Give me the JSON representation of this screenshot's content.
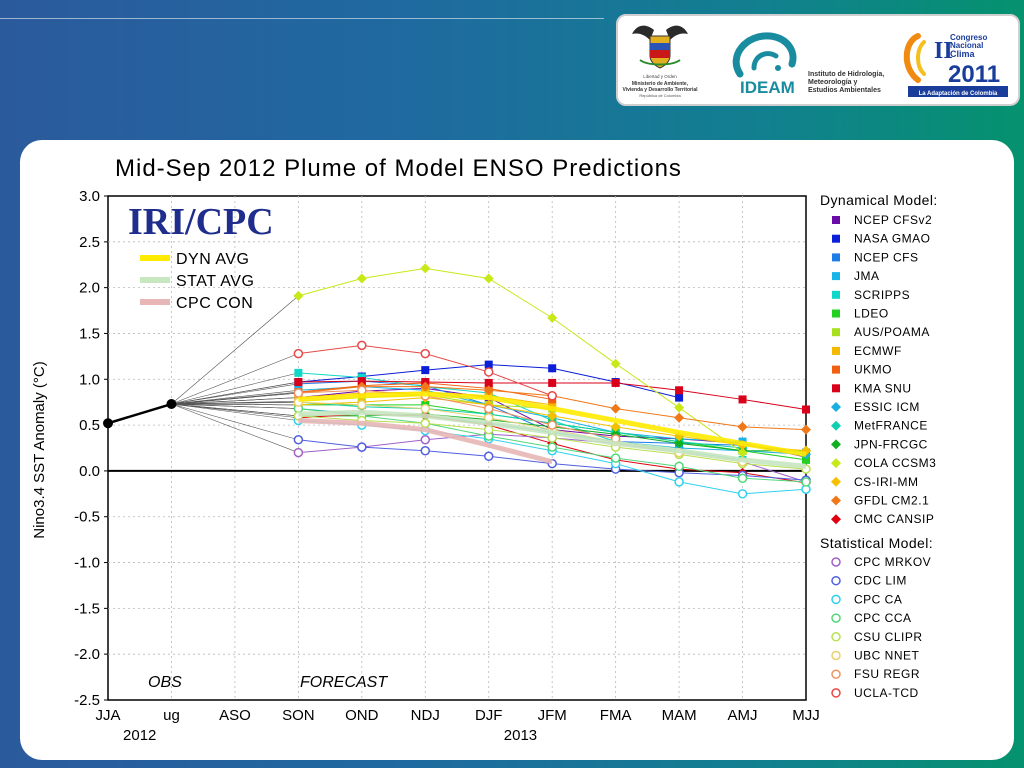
{
  "banner": {
    "logo1": {
      "lines": [
        "Libertad y Orden",
        "Ministerio de Ambiente,",
        "Vivienda y Desarrollo Territorial",
        "República de Colombia"
      ]
    },
    "logo2": {
      "name": "IDEAM",
      "lines": [
        "Instituto de Hidrología,",
        "Meteorología y",
        "Estudios Ambientales"
      ]
    },
    "logo3": {
      "numeral": "II",
      "lines": [
        "Congreso",
        "Nacional",
        "Clima"
      ],
      "year": "2011",
      "tagline": "La Adaptación de Colombia"
    }
  },
  "chart_data": {
    "type": "line",
    "title": "Mid-Sep 2012 Plume of Model ENSO Predictions",
    "ylabel": "Nino3.4 SST Anomaly (°C)",
    "ylim": [
      -2.5,
      3.0
    ],
    "yticks": [
      "3.0",
      "2.5",
      "2.0",
      "1.5",
      "1.0",
      "0.5",
      "0.0",
      "-0.5",
      "-1.0",
      "-1.5",
      "-2.0",
      "-2.5"
    ],
    "categories": [
      "JJA",
      "ug",
      "ASO",
      "SON",
      "OND",
      "NDJ",
      "DJF",
      "JFM",
      "FMA",
      "MAM",
      "AMJ",
      "MJJ"
    ],
    "year_labels": [
      {
        "text": "2012",
        "at": 0.5
      },
      {
        "text": "2013",
        "at": 6.5
      }
    ],
    "obs_label": "OBS",
    "forecast_label": "FORECAST",
    "watermark": "IRI/CPC",
    "grid": true,
    "observed": {
      "x": [
        0,
        1
      ],
      "y": [
        0.52,
        0.73
      ]
    },
    "averages": [
      {
        "name": "DYN AVG",
        "color": "#ffea00",
        "values": [
          null,
          0.73,
          null,
          0.78,
          0.82,
          0.84,
          0.8,
          0.68,
          0.55,
          0.42,
          0.3,
          0.18
        ]
      },
      {
        "name": "STAT AVG",
        "color": "#c8e6c0",
        "values": [
          null,
          0.73,
          null,
          0.62,
          0.64,
          0.6,
          0.52,
          0.42,
          0.3,
          0.22,
          0.12,
          0.05
        ]
      },
      {
        "name": "CPC CON",
        "color": "#e8b6b6",
        "values": [
          null,
          0.73,
          null,
          0.55,
          0.52,
          0.45,
          0.28,
          0.1,
          null,
          null,
          null,
          null
        ]
      }
    ],
    "legend_dynamical_title": "Dynamical Model:",
    "legend_statistical_title": "Statistical Model:",
    "series": [
      {
        "name": "NCEP CFSv2",
        "group": "dyn",
        "marker": "square",
        "color": "#6a0aa8",
        "values": [
          null,
          0.73,
          null,
          0.8,
          0.87,
          0.9,
          0.8,
          0.45,
          0.38,
          0.35,
          0.3,
          0.15
        ]
      },
      {
        "name": "NASA GMAO",
        "group": "dyn",
        "marker": "square",
        "color": "#0b1ed8",
        "values": [
          null,
          0.73,
          null,
          0.97,
          1.03,
          1.1,
          1.16,
          1.12,
          0.97,
          0.8,
          null,
          null
        ]
      },
      {
        "name": "NCEP CFS",
        "group": "dyn",
        "marker": "square",
        "color": "#1e7ce6",
        "values": [
          null,
          0.73,
          null,
          0.95,
          0.98,
          0.93,
          0.72,
          0.42,
          0.32,
          0.3,
          0.28,
          0.2
        ]
      },
      {
        "name": "JMA",
        "group": "dyn",
        "marker": "square",
        "color": "#18b4e8",
        "values": [
          null,
          0.73,
          null,
          0.88,
          0.92,
          0.88,
          0.72,
          0.58,
          0.42,
          0.35,
          0.32,
          null
        ]
      },
      {
        "name": "SCRIPPS",
        "group": "dyn",
        "marker": "square",
        "color": "#10d8c8",
        "values": [
          null,
          0.73,
          null,
          1.07,
          1.02,
          0.92,
          0.85,
          0.55,
          0.32,
          0.22,
          0.12,
          null
        ]
      },
      {
        "name": "LDEO",
        "group": "dyn",
        "marker": "square",
        "color": "#22d022",
        "values": [
          null,
          0.73,
          null,
          0.72,
          0.72,
          0.72,
          0.62,
          0.52,
          0.42,
          0.32,
          0.22,
          0.12
        ]
      },
      {
        "name": "AUS/POAMA",
        "group": "dyn",
        "marker": "square",
        "color": "#a8e020",
        "values": [
          null,
          0.73,
          null,
          0.76,
          0.8,
          0.83,
          0.72,
          0.68,
          null,
          null,
          null,
          null
        ]
      },
      {
        "name": "ECMWF",
        "group": "dyn",
        "marker": "square",
        "color": "#f4b800",
        "values": [
          null,
          0.73,
          null,
          0.8,
          0.85,
          0.86,
          0.82,
          0.72,
          null,
          null,
          null,
          null
        ]
      },
      {
        "name": "UKMO",
        "group": "dyn",
        "marker": "square",
        "color": "#f06010",
        "values": [
          null,
          0.73,
          null,
          0.86,
          0.93,
          0.96,
          0.9,
          0.78,
          null,
          null,
          null,
          null
        ]
      },
      {
        "name": "KMA SNU",
        "group": "dyn",
        "marker": "square",
        "color": "#d8001a",
        "values": [
          null,
          0.73,
          null,
          0.97,
          0.98,
          0.97,
          0.96,
          0.96,
          0.96,
          0.88,
          0.78,
          0.67
        ]
      },
      {
        "name": "ESSIC ICM",
        "group": "dyn",
        "marker": "diamond",
        "color": "#18b0e0",
        "values": [
          null,
          0.73,
          null,
          0.68,
          0.62,
          0.6,
          0.52,
          0.42,
          0.32,
          0.25,
          0.22,
          0.18
        ]
      },
      {
        "name": "MetFRANCE",
        "group": "dyn",
        "marker": "diamond",
        "color": "#10d0b0",
        "values": [
          null,
          0.73,
          null,
          0.75,
          0.7,
          0.68,
          0.62,
          0.52,
          0.42,
          0.32,
          0.25,
          null
        ]
      },
      {
        "name": "JPN-FRCGC",
        "group": "dyn",
        "marker": "diamond",
        "color": "#10b020",
        "values": [
          null,
          0.73,
          null,
          0.6,
          0.6,
          0.62,
          0.56,
          0.48,
          0.4,
          0.3,
          0.22,
          0.22
        ]
      },
      {
        "name": "COLA CCSM3",
        "group": "dyn",
        "marker": "diamond",
        "color": "#c8e818",
        "values": [
          null,
          0.73,
          null,
          1.91,
          2.1,
          2.21,
          2.1,
          1.67,
          1.17,
          0.69,
          0.2,
          null
        ]
      },
      {
        "name": "CS-IRI-MM",
        "group": "dyn",
        "marker": "diamond",
        "color": "#f4c000",
        "values": [
          null,
          0.73,
          null,
          0.72,
          0.75,
          0.8,
          0.72,
          0.6,
          0.48,
          0.38,
          0.28,
          0.22
        ]
      },
      {
        "name": "GFDL CM2.1",
        "group": "dyn",
        "marker": "diamond",
        "color": "#f07818",
        "values": [
          null,
          0.73,
          null,
          0.85,
          0.92,
          0.92,
          0.88,
          0.82,
          0.68,
          0.58,
          0.48,
          0.45
        ]
      },
      {
        "name": "CMC CANSIP",
        "group": "dyn",
        "marker": "diamond",
        "color": "#e00010",
        "values": [
          null,
          0.73,
          null,
          0.58,
          0.62,
          0.6,
          0.5,
          0.3,
          0.12,
          0.02,
          -0.02,
          -0.13
        ]
      },
      {
        "name": "CPC MRKOV",
        "group": "stat",
        "marker": "circle",
        "color": "#a060c8",
        "values": [
          null,
          0.73,
          null,
          0.2,
          0.26,
          0.34,
          0.4,
          0.36,
          0.3,
          0.2,
          0.1,
          -0.12
        ]
      },
      {
        "name": "CDC LIM",
        "group": "stat",
        "marker": "circle",
        "color": "#5060e0",
        "values": [
          null,
          0.73,
          null,
          0.34,
          0.26,
          0.22,
          0.16,
          0.08,
          0.02,
          -0.02,
          -0.05,
          -0.1
        ]
      },
      {
        "name": "CPC CA",
        "group": "stat",
        "marker": "circle",
        "color": "#30d0f0",
        "values": [
          null,
          0.73,
          null,
          0.55,
          0.5,
          0.44,
          0.35,
          0.22,
          0.08,
          -0.12,
          -0.25,
          -0.2
        ]
      },
      {
        "name": "CPC CCA",
        "group": "stat",
        "marker": "circle",
        "color": "#50d878",
        "values": [
          null,
          0.73,
          null,
          0.68,
          0.6,
          0.52,
          0.38,
          0.26,
          0.14,
          0.05,
          -0.08,
          -0.12
        ]
      },
      {
        "name": "CSU CLIPR",
        "group": "stat",
        "marker": "circle",
        "color": "#b8e050",
        "values": [
          null,
          0.73,
          null,
          0.6,
          0.55,
          0.52,
          0.45,
          0.36,
          0.26,
          0.18,
          0.08,
          0.02
        ]
      },
      {
        "name": "UBC NNET",
        "group": "stat",
        "marker": "circle",
        "color": "#e8d070",
        "values": [
          null,
          0.73,
          null,
          0.75,
          0.72,
          0.68,
          0.58,
          0.45,
          0.32,
          0.2,
          0.1,
          null
        ]
      },
      {
        "name": "FSU REGR",
        "group": "stat",
        "marker": "circle",
        "color": "#f09060",
        "values": [
          null,
          0.73,
          null,
          0.85,
          0.88,
          0.82,
          0.68,
          0.5,
          0.35,
          null,
          null,
          null
        ]
      },
      {
        "name": "UCLA-TCD",
        "group": "stat",
        "marker": "circle",
        "color": "#e84848",
        "values": [
          null,
          0.73,
          null,
          1.28,
          1.37,
          1.28,
          1.08,
          0.82,
          null,
          null,
          null,
          null
        ]
      }
    ]
  }
}
